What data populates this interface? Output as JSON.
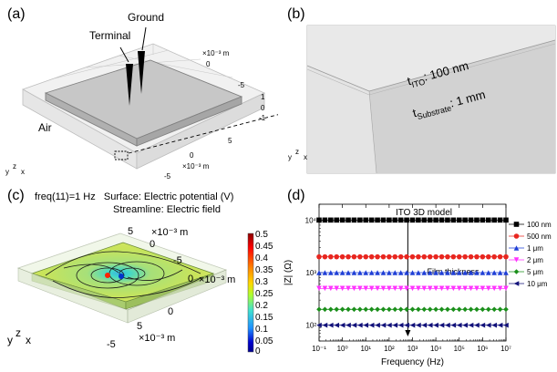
{
  "panels": {
    "a": {
      "label": "(a)",
      "terminal": "Terminal",
      "ground": "Ground",
      "air": "Air",
      "axis_unit": "×10⁻³ m",
      "ticks_top": [
        "0",
        "-5"
      ],
      "ticks_vert": [
        "1",
        "0",
        "-1"
      ],
      "ticks_front": [
        "5",
        "0",
        "-5"
      ]
    },
    "b": {
      "label": "(b)",
      "t_ito": "t",
      "t_ito_sub": "ITO",
      "t_ito_val": ": 100 nm",
      "t_sub": "t",
      "t_sub_sub": "Substrate",
      "t_sub_val": ": 1 mm"
    },
    "c": {
      "label": "(c)",
      "line1": "freq(11)=1 Hz   Surface: Electric potential (V)",
      "line2": "Streamline: Electric field",
      "axis_unit": "×10⁻³ m",
      "ticks_top": [
        "5",
        "0",
        "-5"
      ],
      "ticks_front": [
        "0",
        "5",
        "-5"
      ],
      "tick_right": "0",
      "colorbar_ticks": [
        "0.5",
        "0.45",
        "0.4",
        "0.35",
        "0.3",
        "0.25",
        "0.2",
        "0.15",
        "0.1",
        "0.05",
        "0"
      ]
    },
    "d": {
      "label": "(d)"
    }
  },
  "axes_triad": {
    "y": "y",
    "z": "z",
    "x": "x"
  },
  "colors": {
    "gray_box": "#d9d9d9",
    "colorbar": [
      "#8b0000",
      "#ff0000",
      "#ff8c00",
      "#ffd700",
      "#adff2f",
      "#40e0d0",
      "#1e90ff",
      "#0000cd",
      "#00008b"
    ]
  },
  "chart_data": {
    "type": "line",
    "title": "ITO 3D model",
    "xlabel": "Frequency (Hz)",
    "ylabel": "|Z| (Ω)",
    "xscale": "log",
    "yscale": "log",
    "xlim": [
      0.1,
      10000000
    ],
    "ylim": [
      50,
      20000
    ],
    "x_tick_labels": [
      "10⁻¹",
      "10⁰",
      "10¹",
      "10²",
      "10³",
      "10⁴",
      "10⁵",
      "10⁶",
      "10⁷"
    ],
    "y_tick_labels": [
      "10²",
      "10³",
      "10⁴"
    ],
    "annotation": "Film thickness",
    "legend_position": "right",
    "x": [
      0.1,
      0.1778,
      0.3162,
      0.5623,
      1,
      1.778,
      3.162,
      5.623,
      10,
      17.78,
      31.62,
      56.23,
      100,
      177.8,
      316.2,
      562.3,
      1000,
      1778,
      3162,
      5623,
      10000,
      17780,
      31620,
      56230,
      100000,
      177800,
      316200,
      562300,
      1000000,
      1778000,
      3162000,
      5623000,
      10000000
    ],
    "series": [
      {
        "name": "100 nm",
        "value": 10000,
        "color": "#000000",
        "marker": "square"
      },
      {
        "name": "500 nm",
        "value": 2000,
        "color": "#e8261f",
        "marker": "circle"
      },
      {
        "name": "1 μm",
        "value": 1000,
        "color": "#1f3fd6",
        "marker": "triangle-up"
      },
      {
        "name": "2 μm",
        "value": 500,
        "color": "#ff33ff",
        "marker": "triangle-down"
      },
      {
        "name": "5 μm",
        "value": 200,
        "color": "#1a8f1a",
        "marker": "diamond"
      },
      {
        "name": "10 μm",
        "value": 100,
        "color": "#12127a",
        "marker": "triangle-left"
      }
    ]
  }
}
